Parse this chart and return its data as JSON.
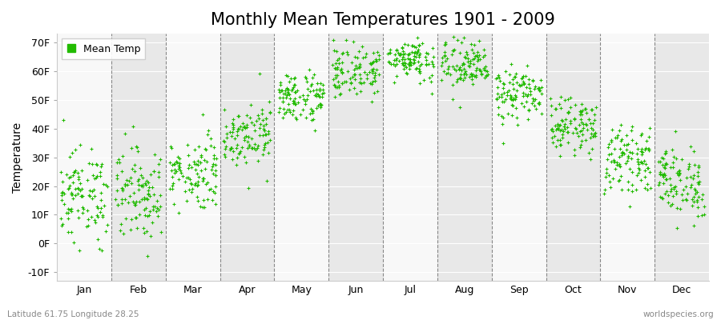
{
  "title": "Monthly Mean Temperatures 1901 - 2009",
  "ylabel": "Temperature",
  "xlabel_labels": [
    "Jan",
    "Feb",
    "Mar",
    "Apr",
    "May",
    "Jun",
    "Jul",
    "Aug",
    "Sep",
    "Oct",
    "Nov",
    "Dec"
  ],
  "ytick_labels": [
    "-10F",
    "0F",
    "10F",
    "20F",
    "30F",
    "40F",
    "50F",
    "60F",
    "70F"
  ],
  "ytick_values": [
    -10,
    0,
    10,
    20,
    30,
    40,
    50,
    60,
    70
  ],
  "ylim": [
    -13,
    73
  ],
  "dot_color": "#22bb00",
  "bg_color": "#ffffff",
  "plot_bg_color": "#f0f0f0",
  "band_color_odd": "#e8e8e8",
  "band_color_even": "#f8f8f8",
  "legend_label": "Mean Temp",
  "footer_left": "Latitude 61.75 Longitude 28.25",
  "footer_right": "worldspecies.org",
  "title_fontsize": 15,
  "label_fontsize": 10,
  "tick_fontsize": 9,
  "n_years": 109,
  "lat": 61.75,
  "lon": 28.25,
  "monthly_mean_C": [
    -8.5,
    -8.0,
    -4.0,
    3.5,
    10.5,
    15.5,
    18.0,
    16.5,
    11.0,
    5.0,
    -1.5,
    -6.0
  ],
  "monthly_std_C": [
    4.5,
    4.5,
    3.5,
    3.0,
    2.5,
    2.5,
    2.0,
    2.5,
    2.5,
    2.5,
    3.0,
    3.5
  ]
}
